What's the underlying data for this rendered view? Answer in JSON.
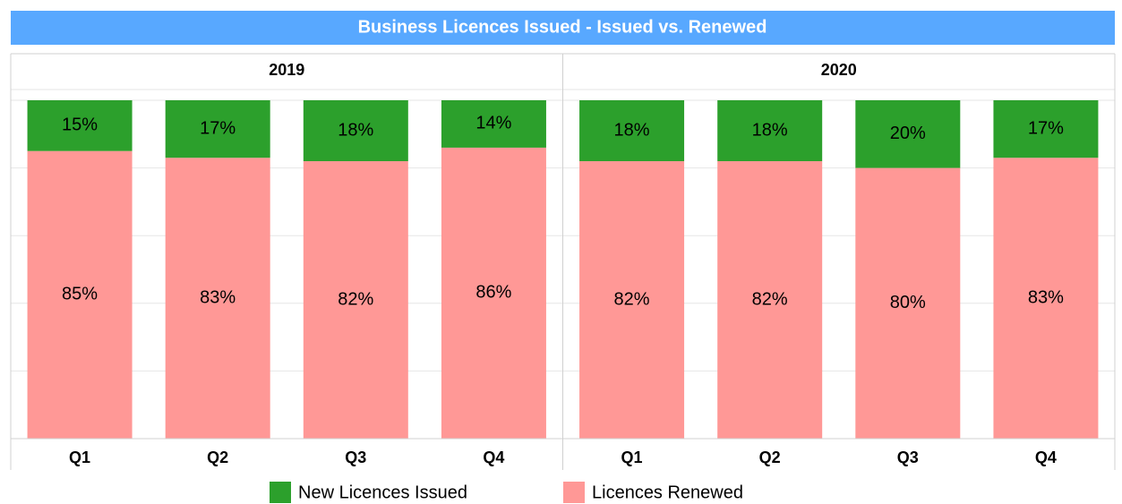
{
  "chart_data": {
    "type": "bar",
    "stacked": true,
    "title": "Business Licences Issued - Issued vs. Renewed",
    "groups": [
      "2019",
      "2020"
    ],
    "categories": [
      "Q1",
      "Q2",
      "Q3",
      "Q4",
      "Q1",
      "Q2",
      "Q3",
      "Q4"
    ],
    "series": [
      {
        "name": "New Licences Issued",
        "color": "#2ca02c",
        "values": [
          15,
          17,
          18,
          14,
          18,
          18,
          20,
          17
        ],
        "value_labels": [
          "15%",
          "17%",
          "18%",
          "14%",
          "18%",
          "18%",
          "20%",
          "17%"
        ]
      },
      {
        "name": "Licences Renewed",
        "color": "#ff9896",
        "values": [
          85,
          83,
          82,
          86,
          82,
          82,
          80,
          83
        ],
        "value_labels": [
          "85%",
          "83%",
          "82%",
          "86%",
          "82%",
          "82%",
          "80%",
          "83%"
        ]
      }
    ],
    "ylim": [
      0,
      100
    ],
    "yticks": [
      0,
      20,
      40,
      60,
      80,
      100
    ],
    "grid": true
  }
}
